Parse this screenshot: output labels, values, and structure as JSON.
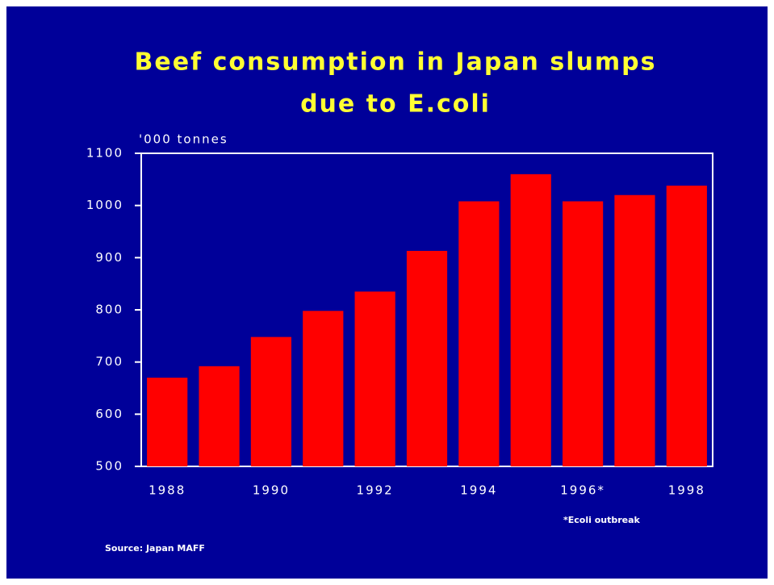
{
  "chart_data": {
    "type": "bar",
    "title": [
      "Beef consumption in Japan slumps",
      "due to E.coli"
    ],
    "y_axis_label": "'000 tonnes",
    "categories": [
      "1988",
      null,
      "1990",
      null,
      "1992",
      null,
      "1994",
      null,
      "1996*",
      null,
      "1998"
    ],
    "values": [
      670,
      692,
      748,
      798,
      835,
      913,
      1008,
      1060,
      1008,
      1020,
      1038
    ],
    "color": "#ff0000",
    "ylim": [
      500,
      1100
    ],
    "yticks": [
      500,
      600,
      700,
      800,
      900,
      1000,
      1100
    ],
    "grid": false,
    "annotations": {
      "footnote": "*Ecoli outbreak",
      "source": "Source: Japan MAFF"
    }
  }
}
